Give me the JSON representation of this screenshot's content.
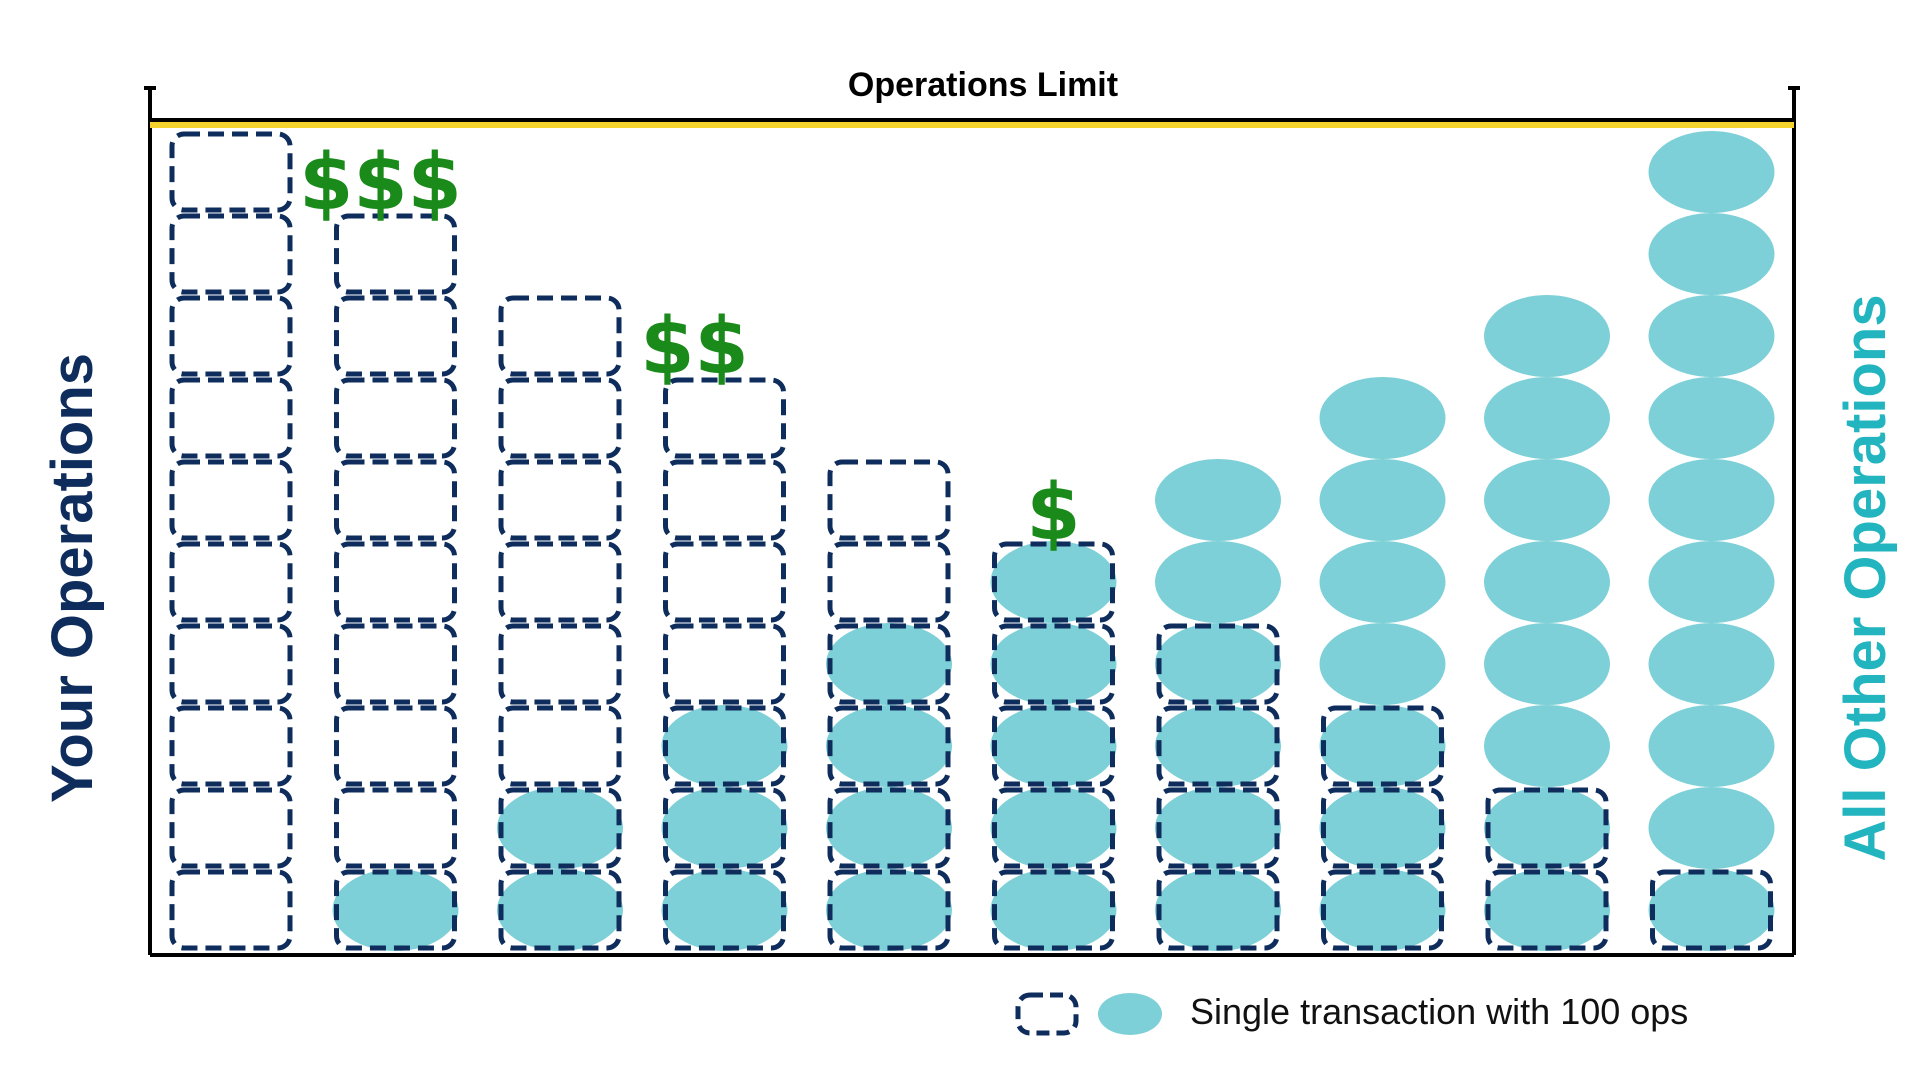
{
  "title": "Operations Limit",
  "left_axis_label": "Your Operations",
  "right_axis_label": "All Other Operations",
  "legend": {
    "label": "Single transaction with 100 ops"
  },
  "colors": {
    "your_ops_stroke": "#0e2d5c",
    "other_ops_fill": "#7dd0d7",
    "limit_line": "#f5d32e",
    "dollar": "#1a8a1a",
    "axis": "#000000",
    "left_label": "#0e2d5c",
    "right_label": "#22b5c0"
  },
  "limit_ops": 1000,
  "columns": [
    {
      "your_ops": 10,
      "other_ops": 0,
      "fee_label": ""
    },
    {
      "your_ops": 9,
      "other_ops": 1,
      "fee_label": "$$$"
    },
    {
      "your_ops": 8,
      "other_ops": 2,
      "fee_label": ""
    },
    {
      "your_ops": 7,
      "other_ops": 3,
      "fee_label": "$$"
    },
    {
      "your_ops": 6,
      "other_ops": 4,
      "fee_label": ""
    },
    {
      "your_ops": 5,
      "other_ops": 5,
      "fee_label": "$"
    },
    {
      "your_ops": 4,
      "other_ops": 6,
      "fee_label": ""
    },
    {
      "your_ops": 3,
      "other_ops": 7,
      "fee_label": ""
    },
    {
      "your_ops": 2,
      "other_ops": 8,
      "fee_label": ""
    },
    {
      "your_ops": 1,
      "other_ops": 10,
      "fee_label": ""
    }
  ]
}
